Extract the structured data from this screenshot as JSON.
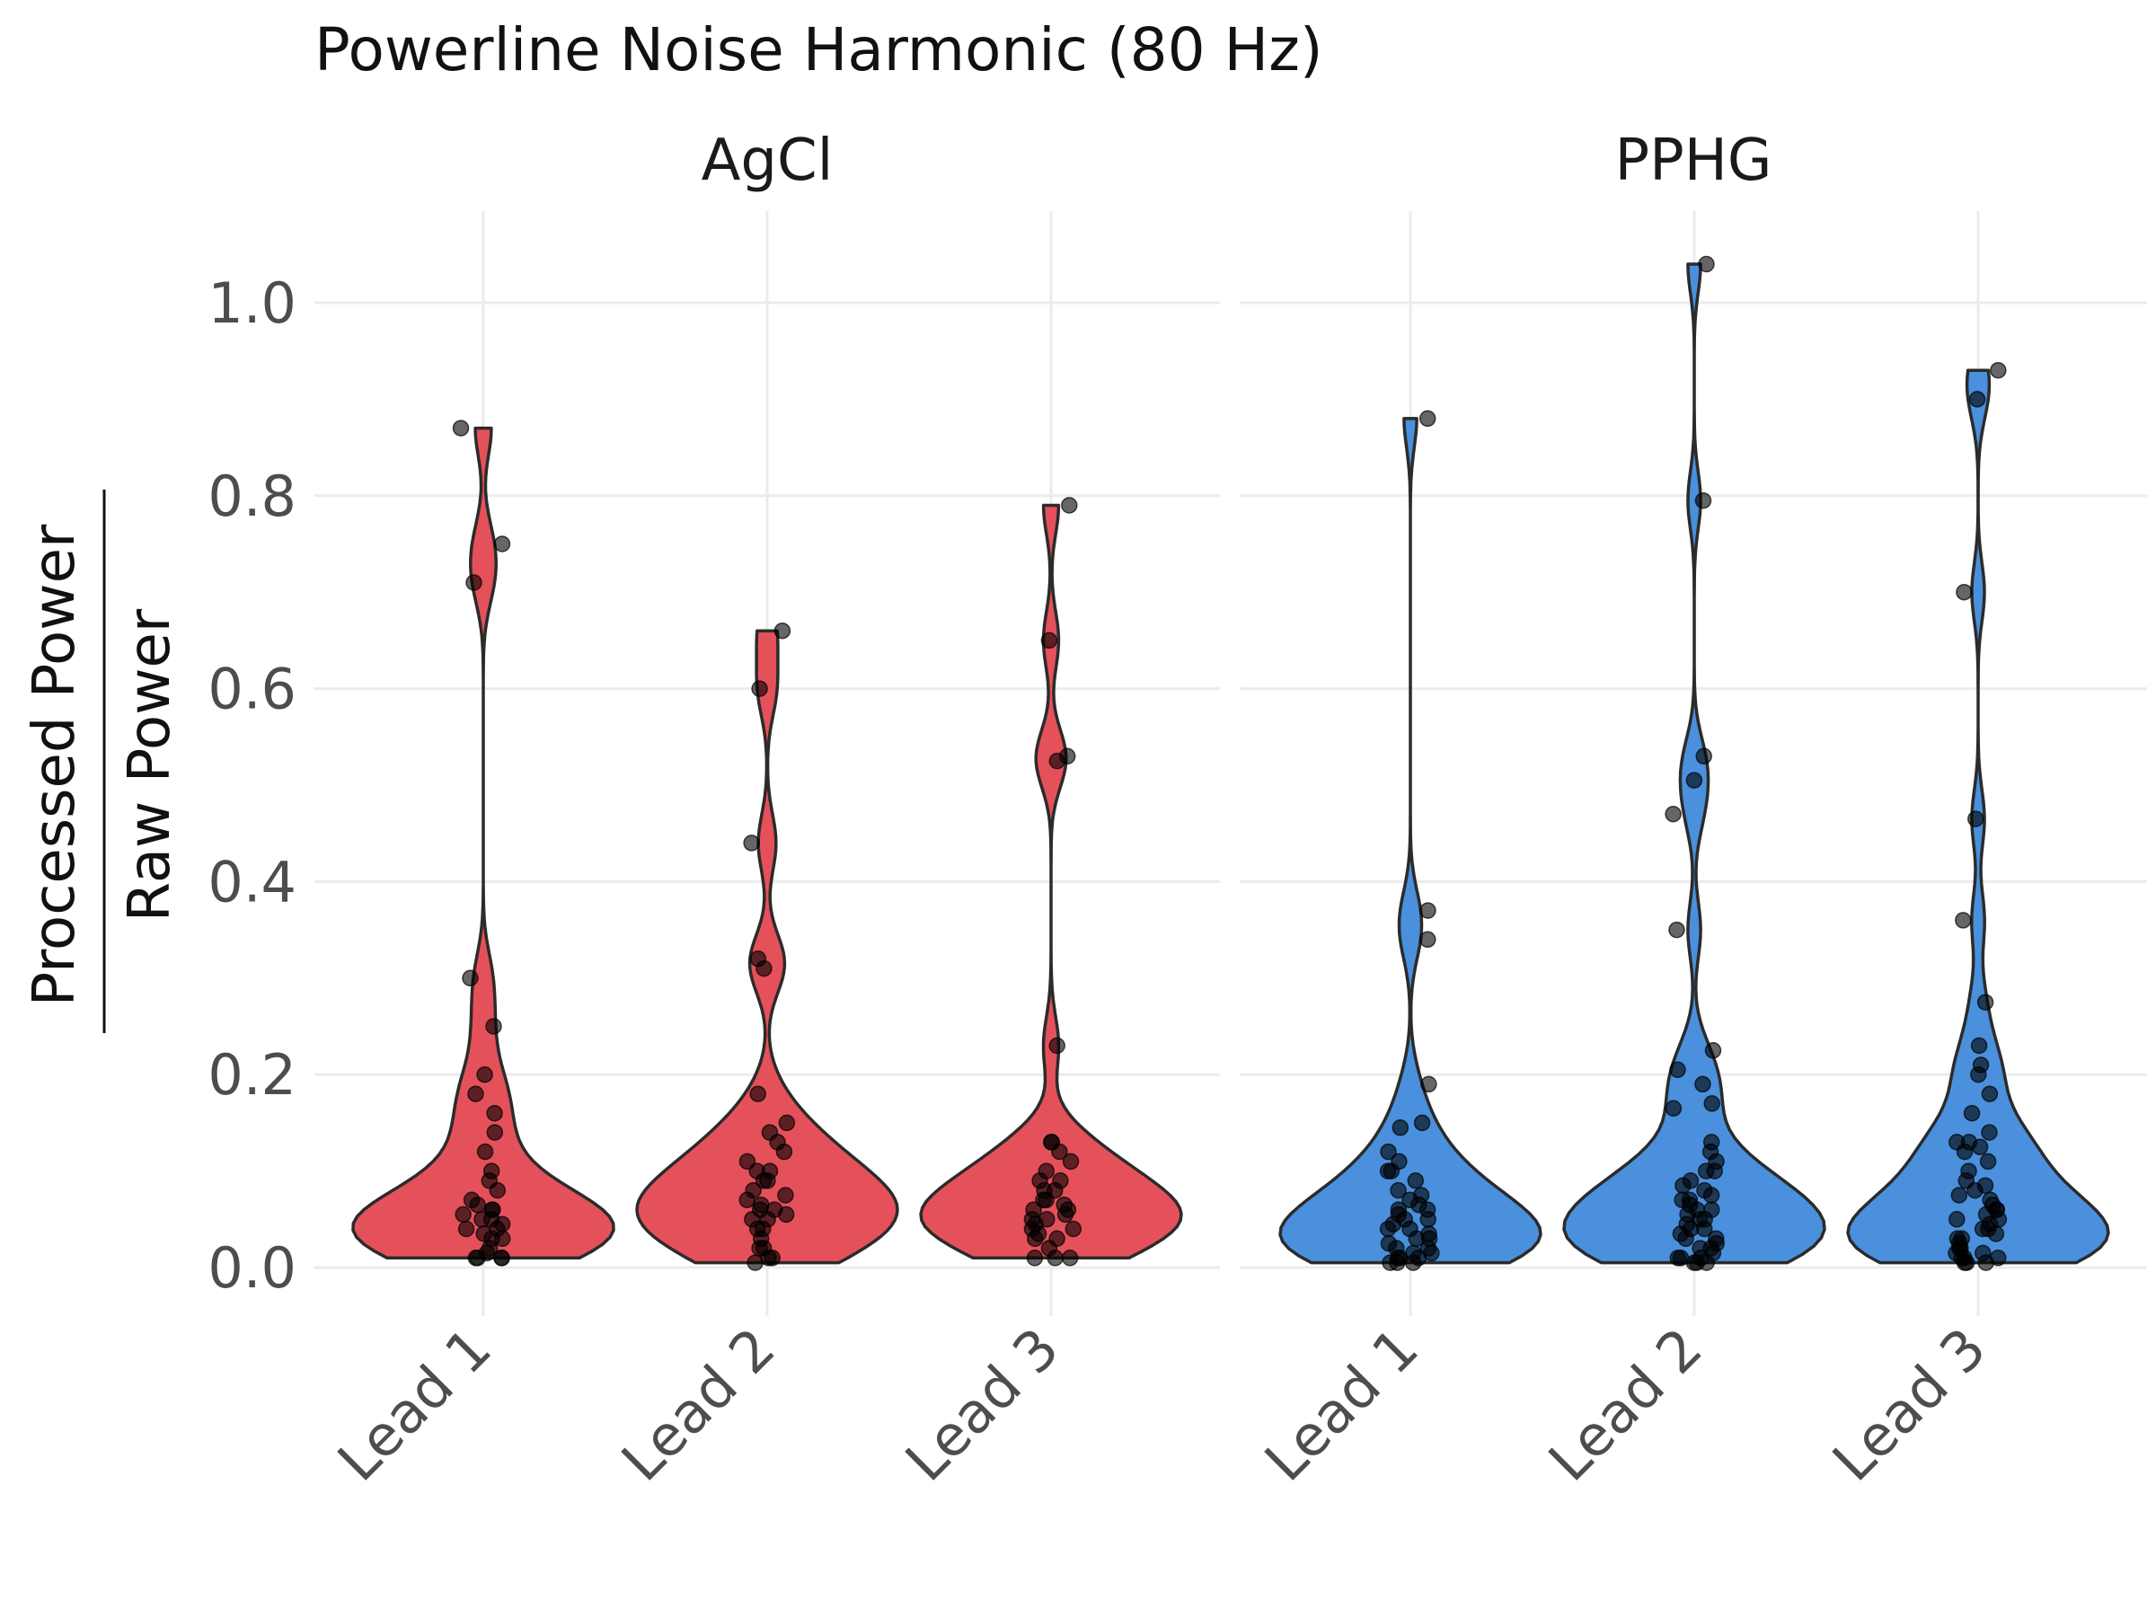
{
  "chart_data": {
    "type": "violin",
    "title": "Powerline Noise Harmonic (80 Hz)",
    "ylabel_numerator": "Processed Power",
    "ylabel_denominator": "Raw Power",
    "categories": [
      "Lead 1",
      "Lead 2",
      "Lead 3"
    ],
    "ylim": [
      -0.05,
      1.1
    ],
    "yticks": [
      0.0,
      0.2,
      0.4,
      0.6,
      0.8,
      1.0
    ],
    "ytick_labels": [
      "0.0",
      "0.2",
      "0.4",
      "0.6",
      "0.8",
      "1.0"
    ],
    "grid": true,
    "legend": "none",
    "panels": [
      {
        "name": "AgCl",
        "color": "#e5515a",
        "series": [
          {
            "category": "Lead 1",
            "values": [
              0.87,
              0.75,
              0.71,
              0.3,
              0.25,
              0.2,
              0.18,
              0.16,
              0.14,
              0.12,
              0.1,
              0.09,
              0.08,
              0.07,
              0.065,
              0.06,
              0.06,
              0.055,
              0.05,
              0.05,
              0.045,
              0.04,
              0.04,
              0.035,
              0.03,
              0.03,
              0.02,
              0.015,
              0.01,
              0.01,
              0.01,
              0.01
            ]
          },
          {
            "category": "Lead 2",
            "values": [
              0.66,
              0.6,
              0.44,
              0.32,
              0.31,
              0.18,
              0.15,
              0.14,
              0.13,
              0.12,
              0.11,
              0.1,
              0.1,
              0.09,
              0.09,
              0.08,
              0.075,
              0.07,
              0.065,
              0.06,
              0.06,
              0.055,
              0.05,
              0.05,
              0.04,
              0.04,
              0.03,
              0.02,
              0.02,
              0.01,
              0.01,
              0.005
            ]
          },
          {
            "category": "Lead 3",
            "values": [
              0.79,
              0.65,
              0.53,
              0.525,
              0.23,
              0.13,
              0.13,
              0.12,
              0.11,
              0.1,
              0.09,
              0.09,
              0.08,
              0.08,
              0.07,
              0.07,
              0.065,
              0.06,
              0.06,
              0.055,
              0.05,
              0.05,
              0.045,
              0.04,
              0.04,
              0.035,
              0.03,
              0.03,
              0.02,
              0.01,
              0.01,
              0.01
            ]
          }
        ]
      },
      {
        "name": "PPHG",
        "color": "#4a90dc",
        "series": [
          {
            "category": "Lead 1",
            "values": [
              0.88,
              0.37,
              0.34,
              0.19,
              0.15,
              0.145,
              0.12,
              0.11,
              0.1,
              0.1,
              0.09,
              0.08,
              0.075,
              0.07,
              0.065,
              0.06,
              0.06,
              0.055,
              0.05,
              0.05,
              0.045,
              0.04,
              0.04,
              0.035,
              0.03,
              0.03,
              0.025,
              0.02,
              0.02,
              0.015,
              0.015,
              0.01,
              0.01,
              0.01,
              0.005,
              0.005,
              0.005
            ]
          },
          {
            "category": "Lead 2",
            "values": [
              1.04,
              0.795,
              0.53,
              0.505,
              0.47,
              0.35,
              0.225,
              0.205,
              0.19,
              0.17,
              0.165,
              0.13,
              0.12,
              0.11,
              0.1,
              0.1,
              0.09,
              0.085,
              0.08,
              0.075,
              0.07,
              0.07,
              0.065,
              0.06,
              0.06,
              0.055,
              0.05,
              0.05,
              0.045,
              0.04,
              0.04,
              0.035,
              0.03,
              0.03,
              0.025,
              0.02,
              0.02,
              0.015,
              0.01,
              0.01,
              0.01,
              0.005,
              0.005,
              0.005
            ]
          },
          {
            "category": "Lead 3",
            "values": [
              0.93,
              0.9,
              0.7,
              0.465,
              0.36,
              0.275,
              0.23,
              0.21,
              0.2,
              0.18,
              0.16,
              0.14,
              0.13,
              0.13,
              0.125,
              0.12,
              0.11,
              0.1,
              0.09,
              0.085,
              0.08,
              0.075,
              0.07,
              0.065,
              0.06,
              0.06,
              0.055,
              0.05,
              0.05,
              0.045,
              0.04,
              0.04,
              0.035,
              0.03,
              0.03,
              0.025,
              0.02,
              0.02,
              0.015,
              0.015,
              0.01,
              0.01,
              0.01,
              0.005,
              0.005,
              0.005
            ]
          }
        ]
      }
    ]
  }
}
